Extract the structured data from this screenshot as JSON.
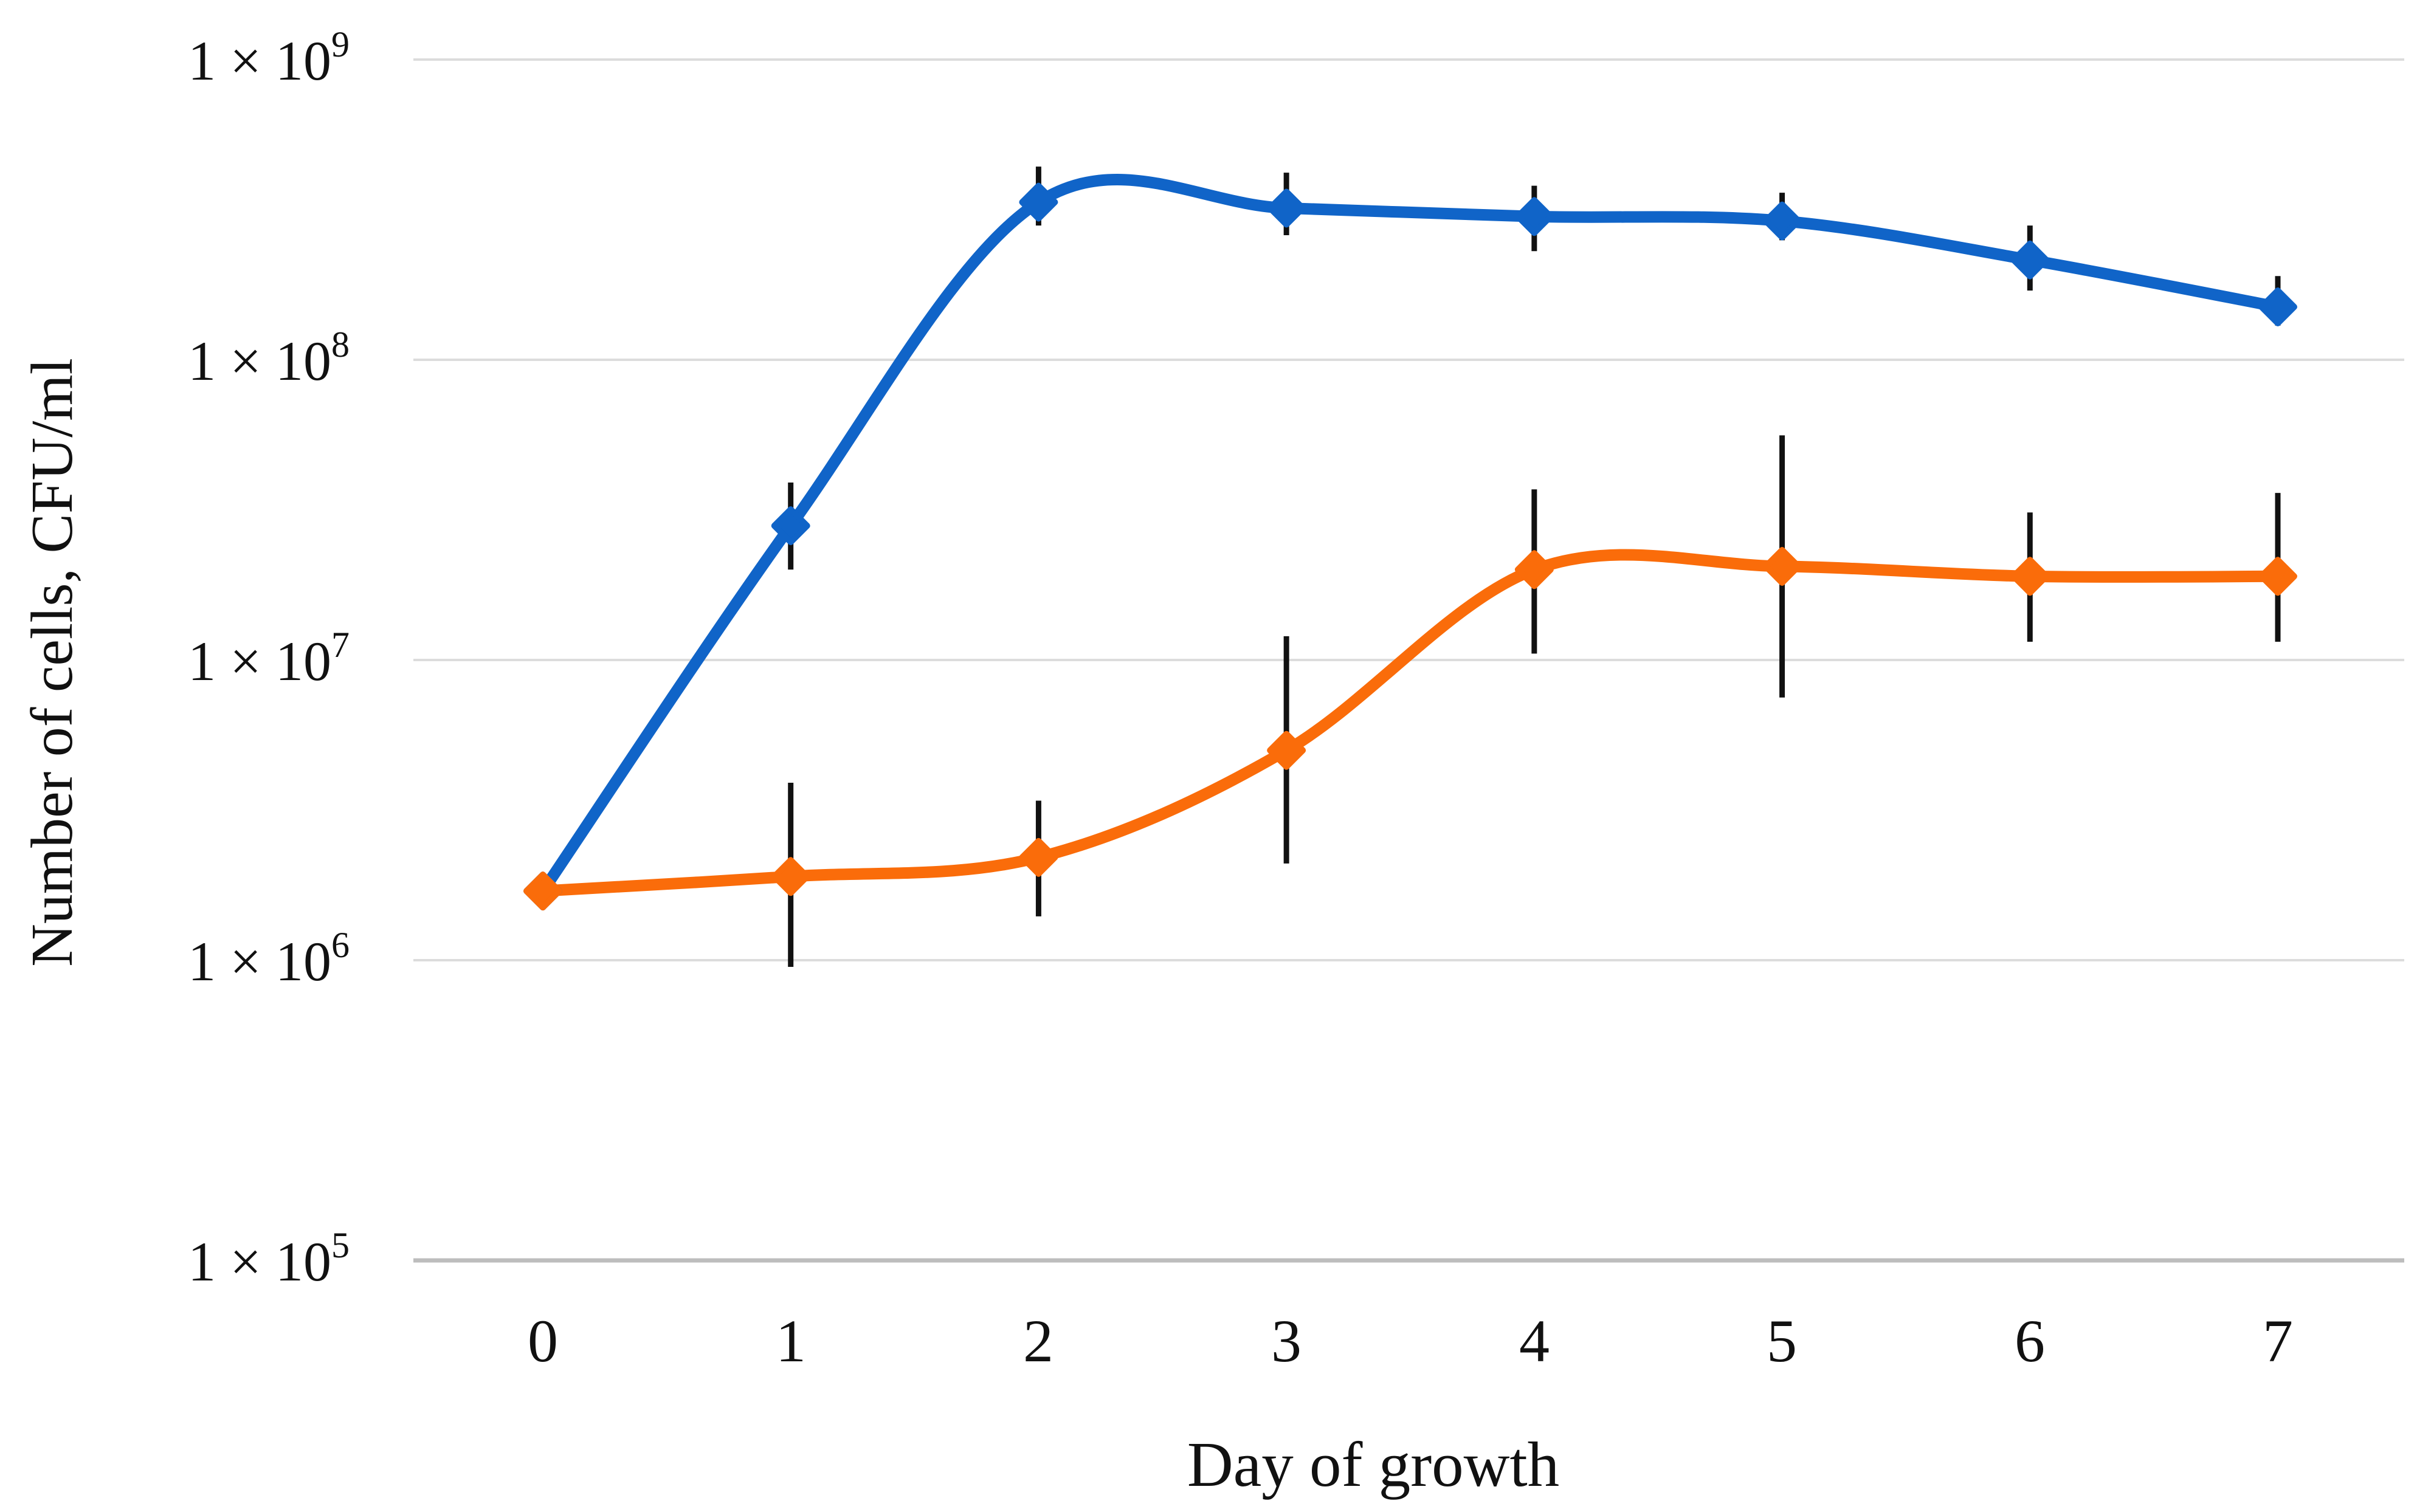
{
  "figure": {
    "background": "#ffffff",
    "plot_background": "#ffffff"
  },
  "chart_data": {
    "type": "line",
    "title": "",
    "xlabel": "Day of growth",
    "ylabel": "Number of cells, CFU/ml",
    "x_axis": {
      "categories": [
        "0",
        "1",
        "2",
        "3",
        "4",
        "5",
        "6",
        "7"
      ]
    },
    "x_categories": [
      "0",
      "1",
      "2",
      "3",
      "4",
      "5",
      "6",
      "7"
    ],
    "y_scale": "log10",
    "y_range": [
      100000,
      1000000000
    ],
    "grid": "horizontal",
    "legend": "none",
    "gridline_color": "#dcdcdc",
    "axis_line_color": "#bdbdbd",
    "error_bar_color": "#111111",
    "y_ticks": [
      {
        "base": "1 × 10",
        "exp": "9",
        "value": 1000000000
      },
      {
        "base": "1 × 10",
        "exp": "8",
        "value": 100000000
      },
      {
        "base": "1 × 10",
        "exp": "7",
        "value": 10000000
      },
      {
        "base": "1 × 10",
        "exp": "6",
        "value": 1000000
      },
      {
        "base": "1 × 10",
        "exp": "5",
        "value": 100000
      }
    ],
    "x": [
      0,
      1,
      2,
      3,
      4,
      5,
      6,
      7
    ],
    "series": [
      {
        "name": "blue-series",
        "color": "#1064c8",
        "marker": "diamond",
        "values": [
          1700000,
          28000000,
          335000000,
          320000000,
          300000000,
          290000000,
          215000000,
          150000000
        ],
        "err_lo": [
          null,
          20000000,
          280000000,
          260000000,
          230000000,
          250000000,
          170000000,
          130000000
        ],
        "err_hi": [
          null,
          39000000,
          440000000,
          420000000,
          380000000,
          360000000,
          280000000,
          190000000
        ]
      },
      {
        "name": "orange-series",
        "color": "#fa6c0a",
        "marker": "diamond",
        "values": [
          1700000,
          1900000,
          2200000,
          5000000,
          20000000,
          20500000,
          19000000,
          19000000
        ],
        "err_lo": [
          null,
          950000,
          1400000,
          2100000,
          10500000,
          7500000,
          11500000,
          11500000
        ],
        "err_hi": [
          null,
          3900000,
          3400000,
          12000000,
          37000000,
          56000000,
          31000000,
          36000000
        ]
      }
    ]
  }
}
